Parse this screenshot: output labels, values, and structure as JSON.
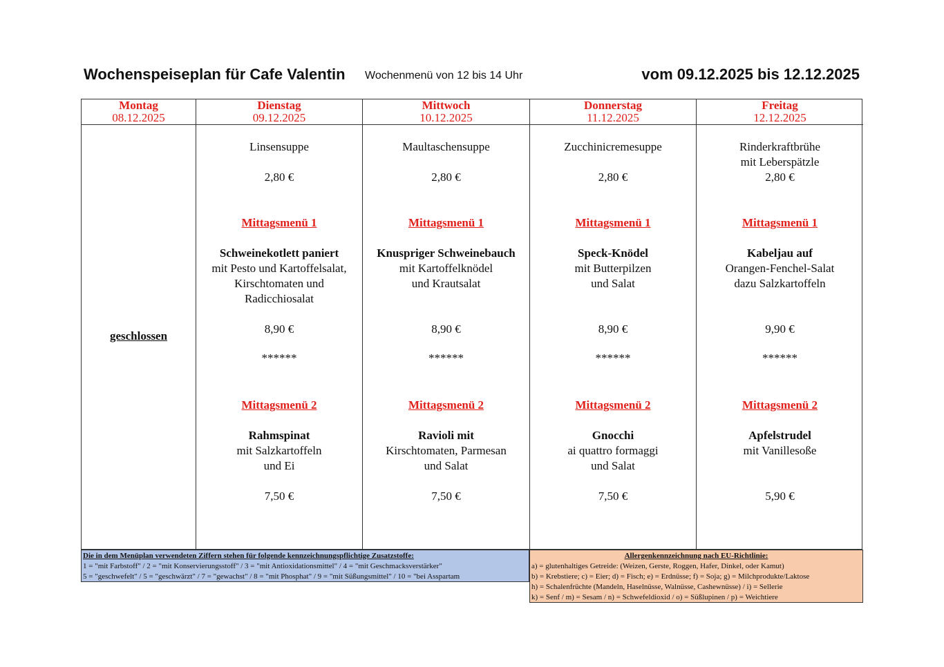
{
  "header": {
    "title": "Wochenspeiseplan für Cafe Valentin",
    "subtitle": "Wochenmenü von 12 bis 14 Uhr",
    "date_range": "vom 09.12.2025 bis 12.12.2025"
  },
  "days": [
    {
      "name": "Montag",
      "date": "08.12.2025",
      "closed": "geschlossen"
    },
    {
      "name": "Dienstag",
      "date": "09.12.2025",
      "soup": [
        "Linsensuppe"
      ],
      "soup_price": "2,80 €",
      "menu1": {
        "title": "Mittagsmenü 1",
        "lines": [
          "Schweinekotlett paniert",
          "mit Pesto und Kartoffelsalat,",
          "Kirschtomaten und",
          "Radicchiosalat"
        ],
        "price": "8,90 €"
      },
      "separator": "******",
      "menu2": {
        "title": "Mittagsmenü 2",
        "lines": [
          "Rahmspinat",
          "mit Salzkartoffeln",
          "und Ei"
        ],
        "price": "7,50 €"
      }
    },
    {
      "name": "Mittwoch",
      "date": "10.12.2025",
      "soup": [
        "Maultaschensuppe"
      ],
      "soup_price": "2,80 €",
      "menu1": {
        "title": "Mittagsmenü 1",
        "lines": [
          "Knuspriger Schweinebauch",
          "mit Kartoffelknödel",
          "und Krautsalat"
        ],
        "price": "8,90 €"
      },
      "separator": "******",
      "menu2": {
        "title": "Mittagsmenü 2",
        "lines": [
          "Ravioli mit",
          "Kirschtomaten, Parmesan",
          "und Salat"
        ],
        "price": "7,50 €"
      }
    },
    {
      "name": "Donnerstag",
      "date": "11.12.2025",
      "soup": [
        "Zucchinicremesuppe"
      ],
      "soup_price": "2,80 €",
      "menu1": {
        "title": "Mittagsmenü 1",
        "lines": [
          "Speck-Knödel",
          "mit Butterpilzen",
          "und Salat"
        ],
        "price": "8,90 €"
      },
      "separator": "******",
      "menu2": {
        "title": "Mittagsmenü 2",
        "lines": [
          "Gnocchi",
          "ai quattro formaggi",
          "und Salat"
        ],
        "price": "7,50 €"
      }
    },
    {
      "name": "Freitag",
      "date": "12.12.2025",
      "soup": [
        "Rinderkraftbrühe",
        "mit Leberspätzle"
      ],
      "soup_price": "2,80 €",
      "menu1": {
        "title": "Mittagsmenü 1",
        "lines": [
          "Kabeljau auf",
          "Orangen-Fenchel-Salat",
          "dazu Salzkartoffeln"
        ],
        "price": "9,90 €"
      },
      "separator": "******",
      "menu2": {
        "title": "Mittagsmenü 2",
        "lines": [
          "Apfelstrudel",
          "mit Vanillesoße"
        ],
        "price": "5,90 €"
      }
    }
  ],
  "additives": {
    "title": "Die in dem Menüplan verwendeten Ziffern stehen für folgende kennzeichnungspflichtige Zusatzstoffe:",
    "lines": [
      "1 = \"mit Farbstoff\" / 2 = \"mit Konservierungsstoff\" / 3 = \"mit Antioxidationsmittel\" / 4 = \"mit Geschmacksverstärker\"",
      "5 = \"geschwefelt\" / 5 = \"geschwärzt\" / 7 = \"gewachst\" / 8 = \"mit Phosphat\" / 9 = \"mit Süßungsmittel\" / 10 = \"bei Asspartam"
    ],
    "color": "#b4c6e7"
  },
  "allergens": {
    "title": "Allergenkennzeichnung nach EU-Richtlinie:",
    "lines": [
      "a) = glutenhaltiges Getreide:  (Weizen, Gerste, Roggen, Hafer, Dinkel, oder Kamut)",
      "b) = Krebstiere; c) = Eier;  d) = Fisch;  e) = Erdnüsse;  f) = Soja;  g) = Milchprodukte/Laktose",
      "h) = Schalenfrüchte (Mandeln, Haselnüsse, Walnüsse, Cashewnüsse) / i) = Sellerie",
      "k) = Senf /  m) = Sesam /  n) = Schwefeldioxid /  o) = Süßlupinen /  p) = Weichtiere"
    ],
    "color": "#f8cbad"
  },
  "accent_color": "#e0201b"
}
